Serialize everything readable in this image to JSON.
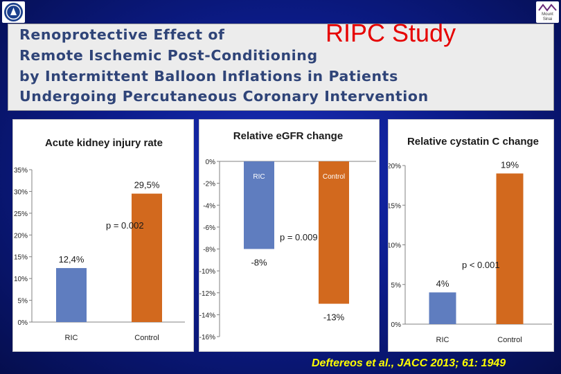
{
  "header": {
    "badge": "RIPC Study",
    "lines": [
      "Renoprotective  Effect  of",
      "Remote  Ischemic  Post-Conditioning",
      "by  Intermittent  Balloon  Inflations  in  Patients",
      "Undergoing  Percutaneous  Coronary  Intervention"
    ],
    "text_color": "#2f4478",
    "badge_color": "#e60000"
  },
  "logos": {
    "left_icon": "university-seal-icon",
    "right_icon": "mount-sinai-logo-icon",
    "right_text": [
      "Mount",
      "Sinai"
    ]
  },
  "citation": "Deftereos et al., JACC 2013; 61: 1949",
  "chart_data": [
    {
      "type": "bar",
      "title": "Acute kidney injury rate",
      "categories": [
        "RIC",
        "Control"
      ],
      "values": [
        12.4,
        29.5
      ],
      "value_labels": [
        "12,4%",
        "29,5%"
      ],
      "colors": [
        "#5f7dbf",
        "#d2691e"
      ],
      "annotation": "p = 0.002",
      "ylim": [
        0,
        35
      ],
      "yticks": [
        0,
        5,
        10,
        15,
        20,
        25,
        30,
        35
      ],
      "ytick_labels": [
        "0%",
        "5%",
        "10%",
        "15%",
        "20%",
        "25%",
        "30%",
        "35%"
      ],
      "xlabel": "",
      "ylabel": "",
      "grid": false,
      "legend": "none"
    },
    {
      "type": "bar",
      "title": "Relative eGFR change",
      "categories": [
        "RIC",
        "Control"
      ],
      "values": [
        -8,
        -13
      ],
      "value_labels": [
        "-8%",
        "-13%"
      ],
      "colors": [
        "#5f7dbf",
        "#d2691e"
      ],
      "annotation": "p = 0.009",
      "ylim": [
        -16,
        0
      ],
      "yticks": [
        0,
        -2,
        -4,
        -6,
        -8,
        -10,
        -12,
        -14,
        -16
      ],
      "ytick_labels": [
        "0%",
        "-2%",
        "-4%",
        "-6%",
        "-8%",
        "-10%",
        "-12%",
        "-14%",
        "-16%"
      ],
      "xlabel": "",
      "ylabel": "",
      "grid": false,
      "legend": "none"
    },
    {
      "type": "bar",
      "title": "Relative cystatin C change",
      "categories": [
        "RIC",
        "Control"
      ],
      "values": [
        4,
        19
      ],
      "value_labels": [
        "4%",
        "19%"
      ],
      "colors": [
        "#5f7dbf",
        "#d2691e"
      ],
      "annotation": "p < 0.001",
      "ylim": [
        0,
        20
      ],
      "yticks": [
        0,
        5,
        10,
        15,
        20
      ],
      "ytick_labels": [
        "0%",
        "5%",
        "10%",
        "15%",
        "20%"
      ],
      "xlabel": "",
      "ylabel": "",
      "grid": false,
      "legend": "none"
    }
  ]
}
